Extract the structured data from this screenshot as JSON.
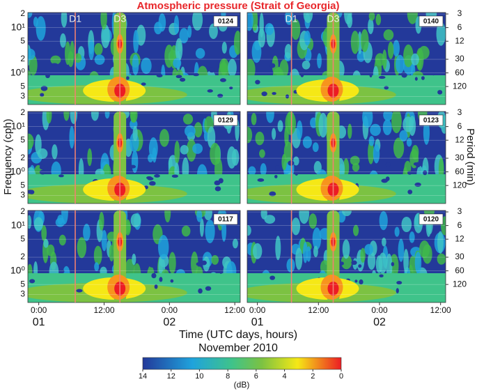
{
  "chart_data": {
    "type": "spectrogram",
    "title": "Atmospheric pressure (Strait of Georgia)",
    "panels": [
      "0124",
      "0140",
      "0129",
      "0123",
      "0117",
      "0120"
    ],
    "y_label": "Frequency (cph)",
    "y2_label": "Period (min)",
    "x_label": "Time (UTC days, hours)",
    "x_sublabel": "November 2010",
    "log_y": true,
    "ylim": [
      0.2,
      21.5
    ],
    "yticks": [
      {
        "value": 20,
        "label": "2"
      },
      {
        "value": 10,
        "label": "10¹"
      },
      5,
      2,
      {
        "value": 1,
        "label": "10⁰"
      },
      {
        "value": 0.5,
        "label": "5"
      },
      {
        "value": 0.3,
        "label": "3"
      }
    ],
    "y2lim": [
      300,
      2.79
    ],
    "y2ticks": [
      3,
      6,
      12,
      30,
      60,
      120
    ],
    "xlim": [
      -2,
      37
    ],
    "xticks": [
      {
        "value": 0,
        "label": "0:00"
      },
      {
        "value": 12,
        "label": "12:00"
      },
      {
        "value": 24,
        "label": "0:00"
      },
      {
        "value": 36,
        "label": "12:00"
      }
    ],
    "day_ticks": [
      {
        "value": 0,
        "label": "01"
      },
      {
        "value": 24,
        "label": "02"
      }
    ],
    "events": [
      {
        "label": "D1",
        "time": 6.7
      },
      {
        "label": "D3",
        "time": 14.9
      }
    ],
    "event_color": "#f08070",
    "colorbar": {
      "label": "(dB)",
      "lim": [
        14,
        0
      ],
      "ticks": [
        14,
        12,
        10,
        8,
        6,
        4,
        2,
        0
      ]
    }
  }
}
